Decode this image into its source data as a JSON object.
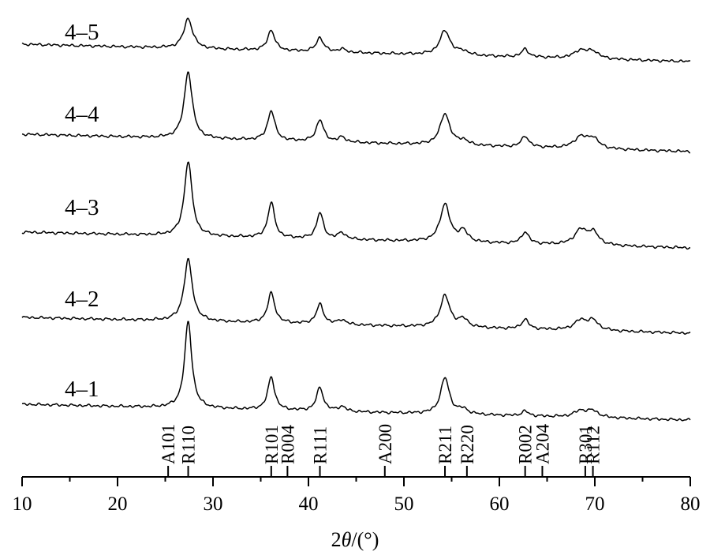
{
  "chart_data": {
    "type": "line",
    "title": "",
    "xlabel_prefix": "2",
    "xlabel_symbol": "θ",
    "xlabel_suffix": "/(°)",
    "ylabel": "",
    "xlim": [
      10,
      80
    ],
    "x_ticks": [
      10,
      20,
      30,
      40,
      50,
      60,
      70,
      80
    ],
    "x_minor_ticks": [
      15,
      25,
      35,
      45,
      55,
      65,
      75
    ],
    "grid": false,
    "legend": "none",
    "color": "#000000",
    "series": [
      {
        "name": "4–5"
      },
      {
        "name": "4–4"
      },
      {
        "name": "4–3"
      },
      {
        "name": "4–2"
      },
      {
        "name": "4–1"
      }
    ],
    "reference_peaks": [
      {
        "label": "A101",
        "x": 25.3
      },
      {
        "label": "R110",
        "x": 27.4
      },
      {
        "label": "R101",
        "x": 36.1
      },
      {
        "label": "R004",
        "x": 37.8
      },
      {
        "label": "R111",
        "x": 41.2
      },
      {
        "label": "A200",
        "x": 48.0
      },
      {
        "label": "R211",
        "x": 54.3
      },
      {
        "label": "R220",
        "x": 56.6
      },
      {
        "label": "R002",
        "x": 62.7
      },
      {
        "label": "A204",
        "x": 64.5
      },
      {
        "label": "R301",
        "x": 69.0
      },
      {
        "label": "R112",
        "x": 69.8
      }
    ]
  }
}
